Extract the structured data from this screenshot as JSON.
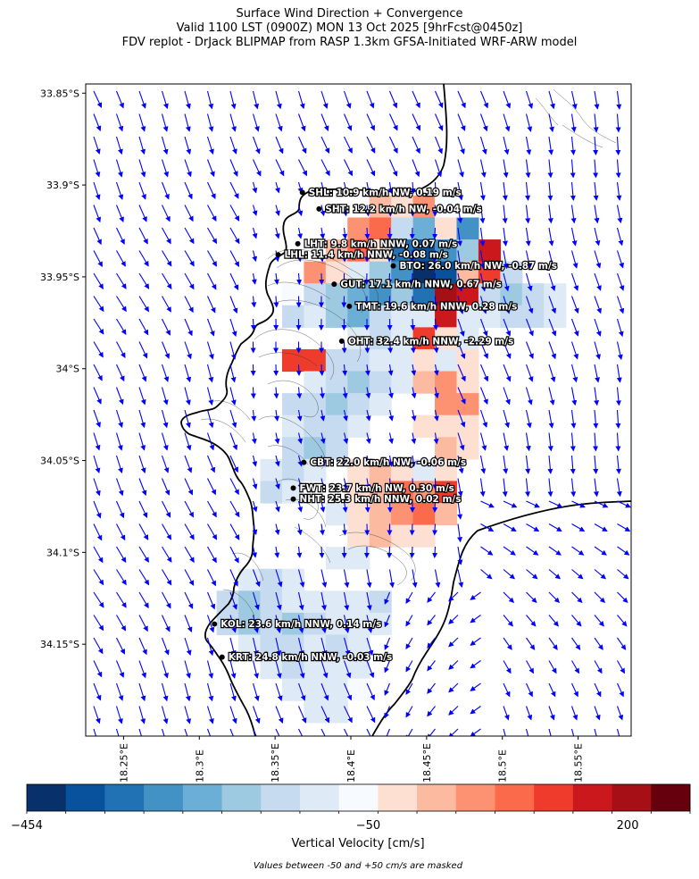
{
  "title": {
    "line1": "Surface Wind Direction + Convergence",
    "line2": "Valid 1100 LST (0900Z) MON 13 Oct 2025 [9hrFcst@0450z]",
    "line3": "FDV replot - DrJack BLIPMAP from RASP 1.3km GFSA-Initiated WRF-ARW model"
  },
  "map": {
    "lat_range": [
      -34.2,
      -33.845
    ],
    "lon_range": [
      18.225,
      18.585
    ],
    "lat_ticks": [
      {
        "value": -33.85,
        "label": "33.85°S"
      },
      {
        "value": -33.9,
        "label": "33.9°S"
      },
      {
        "value": -33.95,
        "label": "33.95°S"
      },
      {
        "value": -34.0,
        "label": "34°S"
      },
      {
        "value": -34.05,
        "label": "34.05°S"
      },
      {
        "value": -34.1,
        "label": "34.1°S"
      },
      {
        "value": -34.15,
        "label": "34.15°S"
      }
    ],
    "lon_ticks": [
      {
        "value": 18.25,
        "label": "18.25°E"
      },
      {
        "value": 18.3,
        "label": "18.3°E"
      },
      {
        "value": 18.35,
        "label": "18.35°E"
      },
      {
        "value": 18.4,
        "label": "18.4°E"
      },
      {
        "value": 18.45,
        "label": "18.45°E"
      },
      {
        "value": 18.5,
        "label": "18.5°E"
      },
      {
        "value": 18.55,
        "label": "18.55°E"
      }
    ],
    "wind_arrow_color": "#0000ff",
    "coast_color": "#000000"
  },
  "stations": [
    {
      "code": "SHL",
      "label": "SHL: 10.9 km/h NW, 0.19 m/s",
      "lat": -33.904,
      "lon": 18.368
    },
    {
      "code": "SHT",
      "label": "SHT: 12.2 km/h NW, -0.04 m/s",
      "lat": -33.913,
      "lon": 18.379
    },
    {
      "code": "LHT",
      "label": "LHT: 9.8 km/h NNW, 0.07 m/s",
      "lat": -33.932,
      "lon": 18.365
    },
    {
      "code": "LHL",
      "label": "LHL: 11.4 km/h NNW, -0.08 m/s",
      "lat": -33.938,
      "lon": 18.352
    },
    {
      "code": "BTO",
      "label": "BTO: 26.0 km/h NW, -0.87 m/s",
      "lat": -33.944,
      "lon": 18.428
    },
    {
      "code": "GUT",
      "label": "GUT: 17.1 km/h NNW, 0.67 m/s",
      "lat": -33.954,
      "lon": 18.389
    },
    {
      "code": "TMT",
      "label": "TMT: 19.6 km/h NNW, 0.28 m/s",
      "lat": -33.966,
      "lon": 18.399
    },
    {
      "code": "OHT",
      "label": "OHT: 32.4 km/h NNW, -2.29 m/s",
      "lat": -33.985,
      "lon": 18.394
    },
    {
      "code": "CBT",
      "label": "CBT: 22.0 km/h NW, -0.06 m/s",
      "lat": -34.051,
      "lon": 18.369
    },
    {
      "code": "FWT",
      "label": "FWT: 23.7 km/h NW, 0.30 m/s",
      "lat": -34.065,
      "lon": 18.362
    },
    {
      "code": "NHT",
      "label": "NHT: 25.3 km/h NNW, 0.02 m/s",
      "lat": -34.071,
      "lon": 18.362
    },
    {
      "code": "KOL",
      "label": "KOL: 23.6 km/h NNW, 0.14 m/s",
      "lat": -34.139,
      "lon": 18.31
    },
    {
      "code": "KRT",
      "label": "KRT: 24.8 km/h NNW, -0.03 m/s",
      "lat": -34.157,
      "lon": 18.315
    }
  ],
  "colorbar": {
    "colors": [
      "#08306b",
      "#08519c",
      "#2171b5",
      "#4292c6",
      "#6baed6",
      "#9ecae1",
      "#c6dbef",
      "#deebf7",
      "#f7fbff",
      "#fee0d2",
      "#fcbba1",
      "#fc9272",
      "#fb6a4a",
      "#ef3b2c",
      "#cb181d",
      "#a50f15",
      "#67000d"
    ],
    "tick_labels": [
      "−454",
      "−50",
      "200"
    ],
    "label": "Vertical Velocity [cm/s]",
    "note": "Values between -50 and +50 cm/s are masked"
  }
}
